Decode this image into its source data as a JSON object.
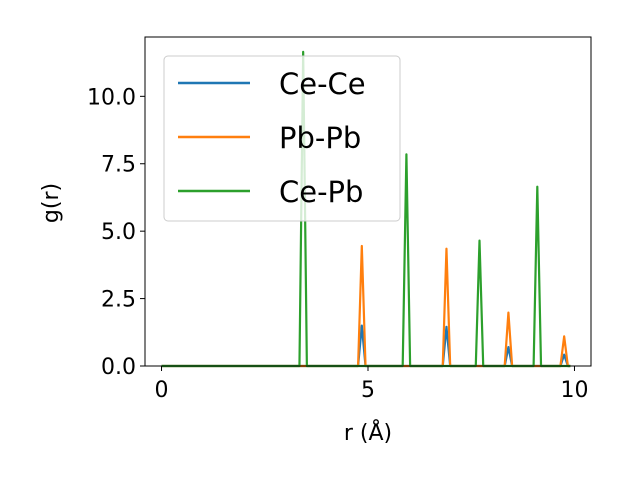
{
  "chart_data": {
    "type": "line",
    "xlabel": "r (Å)",
    "ylabel": "g(r)",
    "xlim": [
      -0.4,
      10.4
    ],
    "ylim": [
      0,
      12.2
    ],
    "xticks": [
      0,
      5,
      10
    ],
    "yticks": [
      0.0,
      2.5,
      5.0,
      7.5,
      10.0
    ],
    "xtick_labels": [
      "0",
      "5",
      "10"
    ],
    "ytick_labels": [
      "0.0",
      "2.5",
      "5.0",
      "7.5",
      "10.0"
    ],
    "grid": false,
    "legend_position": "upper-left",
    "peak_half_width": 0.09,
    "x_range": [
      0,
      9.9
    ],
    "series": [
      {
        "name": "Ce-Ce",
        "color": "#1f77b4",
        "peaks": [
          [
            4.85,
            1.5
          ],
          [
            6.9,
            1.45
          ],
          [
            8.4,
            0.7
          ],
          [
            9.75,
            0.42
          ]
        ]
      },
      {
        "name": "Pb-Pb",
        "color": "#ff7f0e",
        "peaks": [
          [
            4.85,
            4.45
          ],
          [
            6.9,
            4.35
          ],
          [
            8.4,
            1.98
          ],
          [
            9.75,
            1.1
          ]
        ]
      },
      {
        "name": "Ce-Pb",
        "color": "#2ca02c",
        "peaks": [
          [
            3.43,
            11.65
          ],
          [
            5.93,
            7.85
          ],
          [
            7.7,
            4.65
          ],
          [
            9.1,
            6.65
          ]
        ]
      }
    ]
  }
}
